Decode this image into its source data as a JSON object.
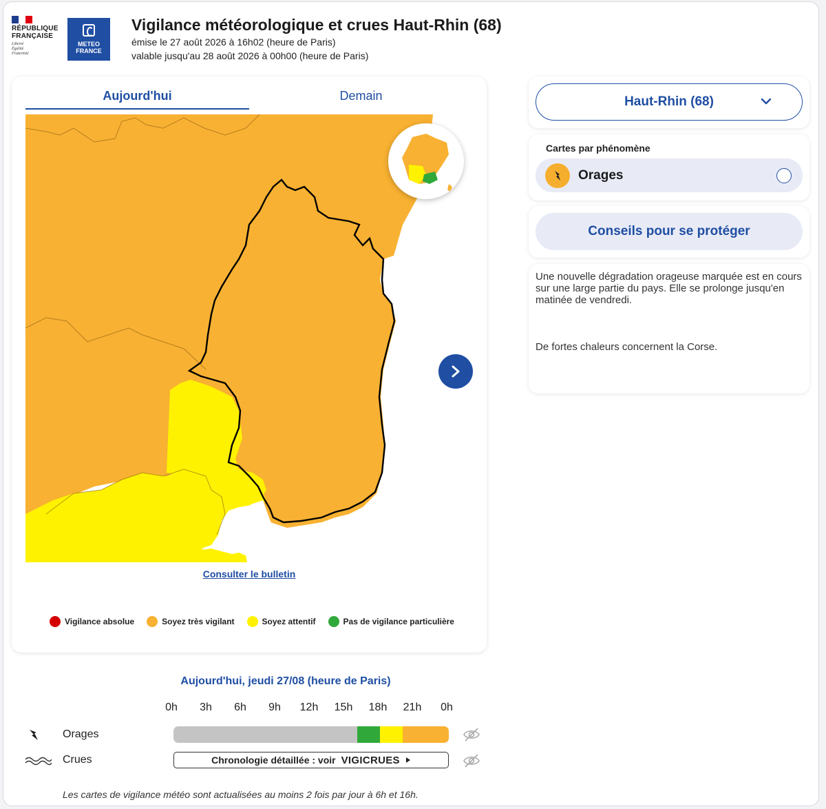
{
  "header": {
    "rf_name_line1": "RÉPUBLIQUE",
    "rf_name_line2": "FRANÇAISE",
    "rf_motto_1": "Liberté",
    "rf_motto_2": "Égalité",
    "rf_motto_3": "Fraternité",
    "mf_line1": "METEO",
    "mf_line2": "FRANCE",
    "title": "Vigilance météorologique et crues Haut-Rhin (68)",
    "issued": "émise le 27 août 2026 à 16h02 (heure de Paris)",
    "valid": "valable jusqu'au 28 août 2026 à 00h00 (heure de Paris)"
  },
  "tabs": {
    "today": "Aujourd'hui",
    "tomorrow": "Demain",
    "active": "today"
  },
  "map": {
    "bulletin_link": "Consulter le bulletin"
  },
  "legend": [
    {
      "label": "Vigilance absolue",
      "color": "#d40000"
    },
    {
      "label": "Soyez très vigilant",
      "color": "#f8b132"
    },
    {
      "label": "Soyez attentif",
      "color": "#fff200"
    },
    {
      "label": "Pas de vigilance particulière",
      "color": "#30a93a"
    }
  ],
  "colors": {
    "accent": "#1f4ea3",
    "orange": "#f8b132",
    "yellow": "#fff200",
    "green": "#30a93a",
    "grey": "#c4c4c4"
  },
  "department": {
    "selected": "Haut-Rhin (68)"
  },
  "phenomena": {
    "label": "Cartes par phénomène",
    "items": [
      {
        "name": "Orages",
        "icon": "lightning-icon",
        "selected": false
      }
    ]
  },
  "advice": {
    "label": "Conseils pour se protéger"
  },
  "bulletin_text": {
    "p1": "Une nouvelle dégradation orageuse marquée est en cours sur une large partie du pays. Elle se prolonge jusqu'en matinée de vendredi.",
    "p2": "De fortes chaleurs concernent la Corse."
  },
  "timeline": {
    "title": "Aujourd'hui, jeudi 27/08 (heure de Paris)",
    "hours": [
      "0h",
      "3h",
      "6h",
      "9h",
      "12h",
      "15h",
      "18h",
      "21h",
      "0h"
    ],
    "rows": [
      {
        "label": "Orages",
        "icon": "lightning-icon"
      },
      {
        "label": "Crues",
        "icon": "waves-icon"
      }
    ],
    "orages_segments": [
      {
        "from_h": 0,
        "to_h": 16,
        "level": "none",
        "color": "#c4c4c4"
      },
      {
        "from_h": 16,
        "to_h": 18,
        "level": "green",
        "color": "#30a93a"
      },
      {
        "from_h": 18,
        "to_h": 20,
        "level": "yellow",
        "color": "#fff200"
      },
      {
        "from_h": 20,
        "to_h": 24,
        "level": "orange",
        "color": "#f8b132"
      }
    ],
    "crues_button": "Chronologie détaillée : voir",
    "vigicrues_a": "V",
    "vigicrues_b": "IGICRUES"
  },
  "footnote": "Les cartes de vigilance météo sont actualisées au moins 2 fois par jour à 6h et 16h."
}
